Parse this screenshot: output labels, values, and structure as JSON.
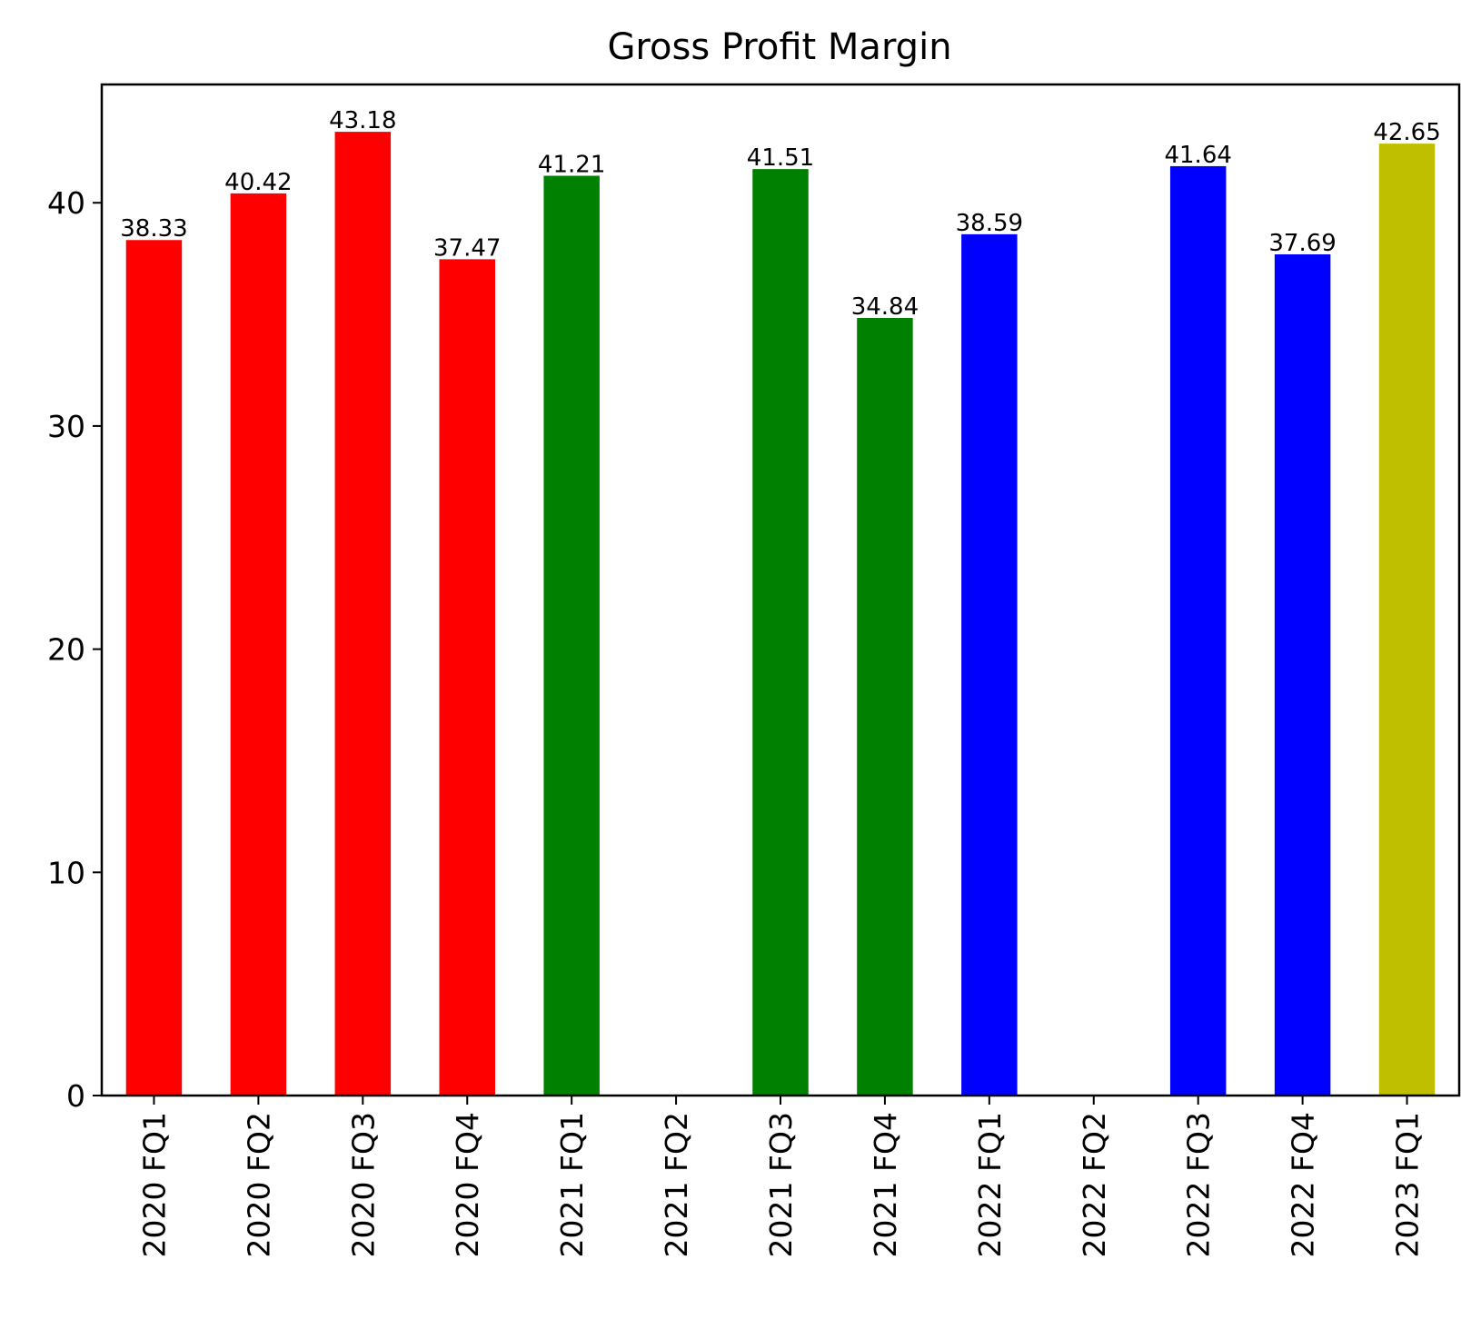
{
  "chart_data": {
    "type": "bar",
    "title": "Gross Profit Margin",
    "xlabel": "",
    "ylabel": "",
    "ylim": [
      0,
      45.3
    ],
    "yticks": [
      0,
      10,
      20,
      30,
      40
    ],
    "grid": false,
    "legend": "none",
    "categories": [
      "2020 FQ1",
      "2020 FQ2",
      "2020 FQ3",
      "2020 FQ4",
      "2021 FQ1",
      "2021 FQ2",
      "2021 FQ3",
      "2021 FQ4",
      "2022 FQ1",
      "2022 FQ2",
      "2022 FQ3",
      "2022 FQ4",
      "2023 FQ1"
    ],
    "values": [
      38.33,
      40.42,
      43.18,
      37.47,
      41.21,
      0,
      41.51,
      34.84,
      38.59,
      0,
      41.64,
      37.69,
      42.65
    ],
    "value_labels": [
      "38.33",
      "40.42",
      "43.18",
      "37.47",
      "41.21",
      "",
      "41.51",
      "34.84",
      "38.59",
      "",
      "41.64",
      "37.69",
      "42.65"
    ],
    "colors": [
      "#ff0000",
      "#ff0000",
      "#ff0000",
      "#ff0000",
      "#008000",
      "#008000",
      "#008000",
      "#008000",
      "#0000ff",
      "#0000ff",
      "#0000ff",
      "#0000ff",
      "#bfbf00"
    ]
  }
}
